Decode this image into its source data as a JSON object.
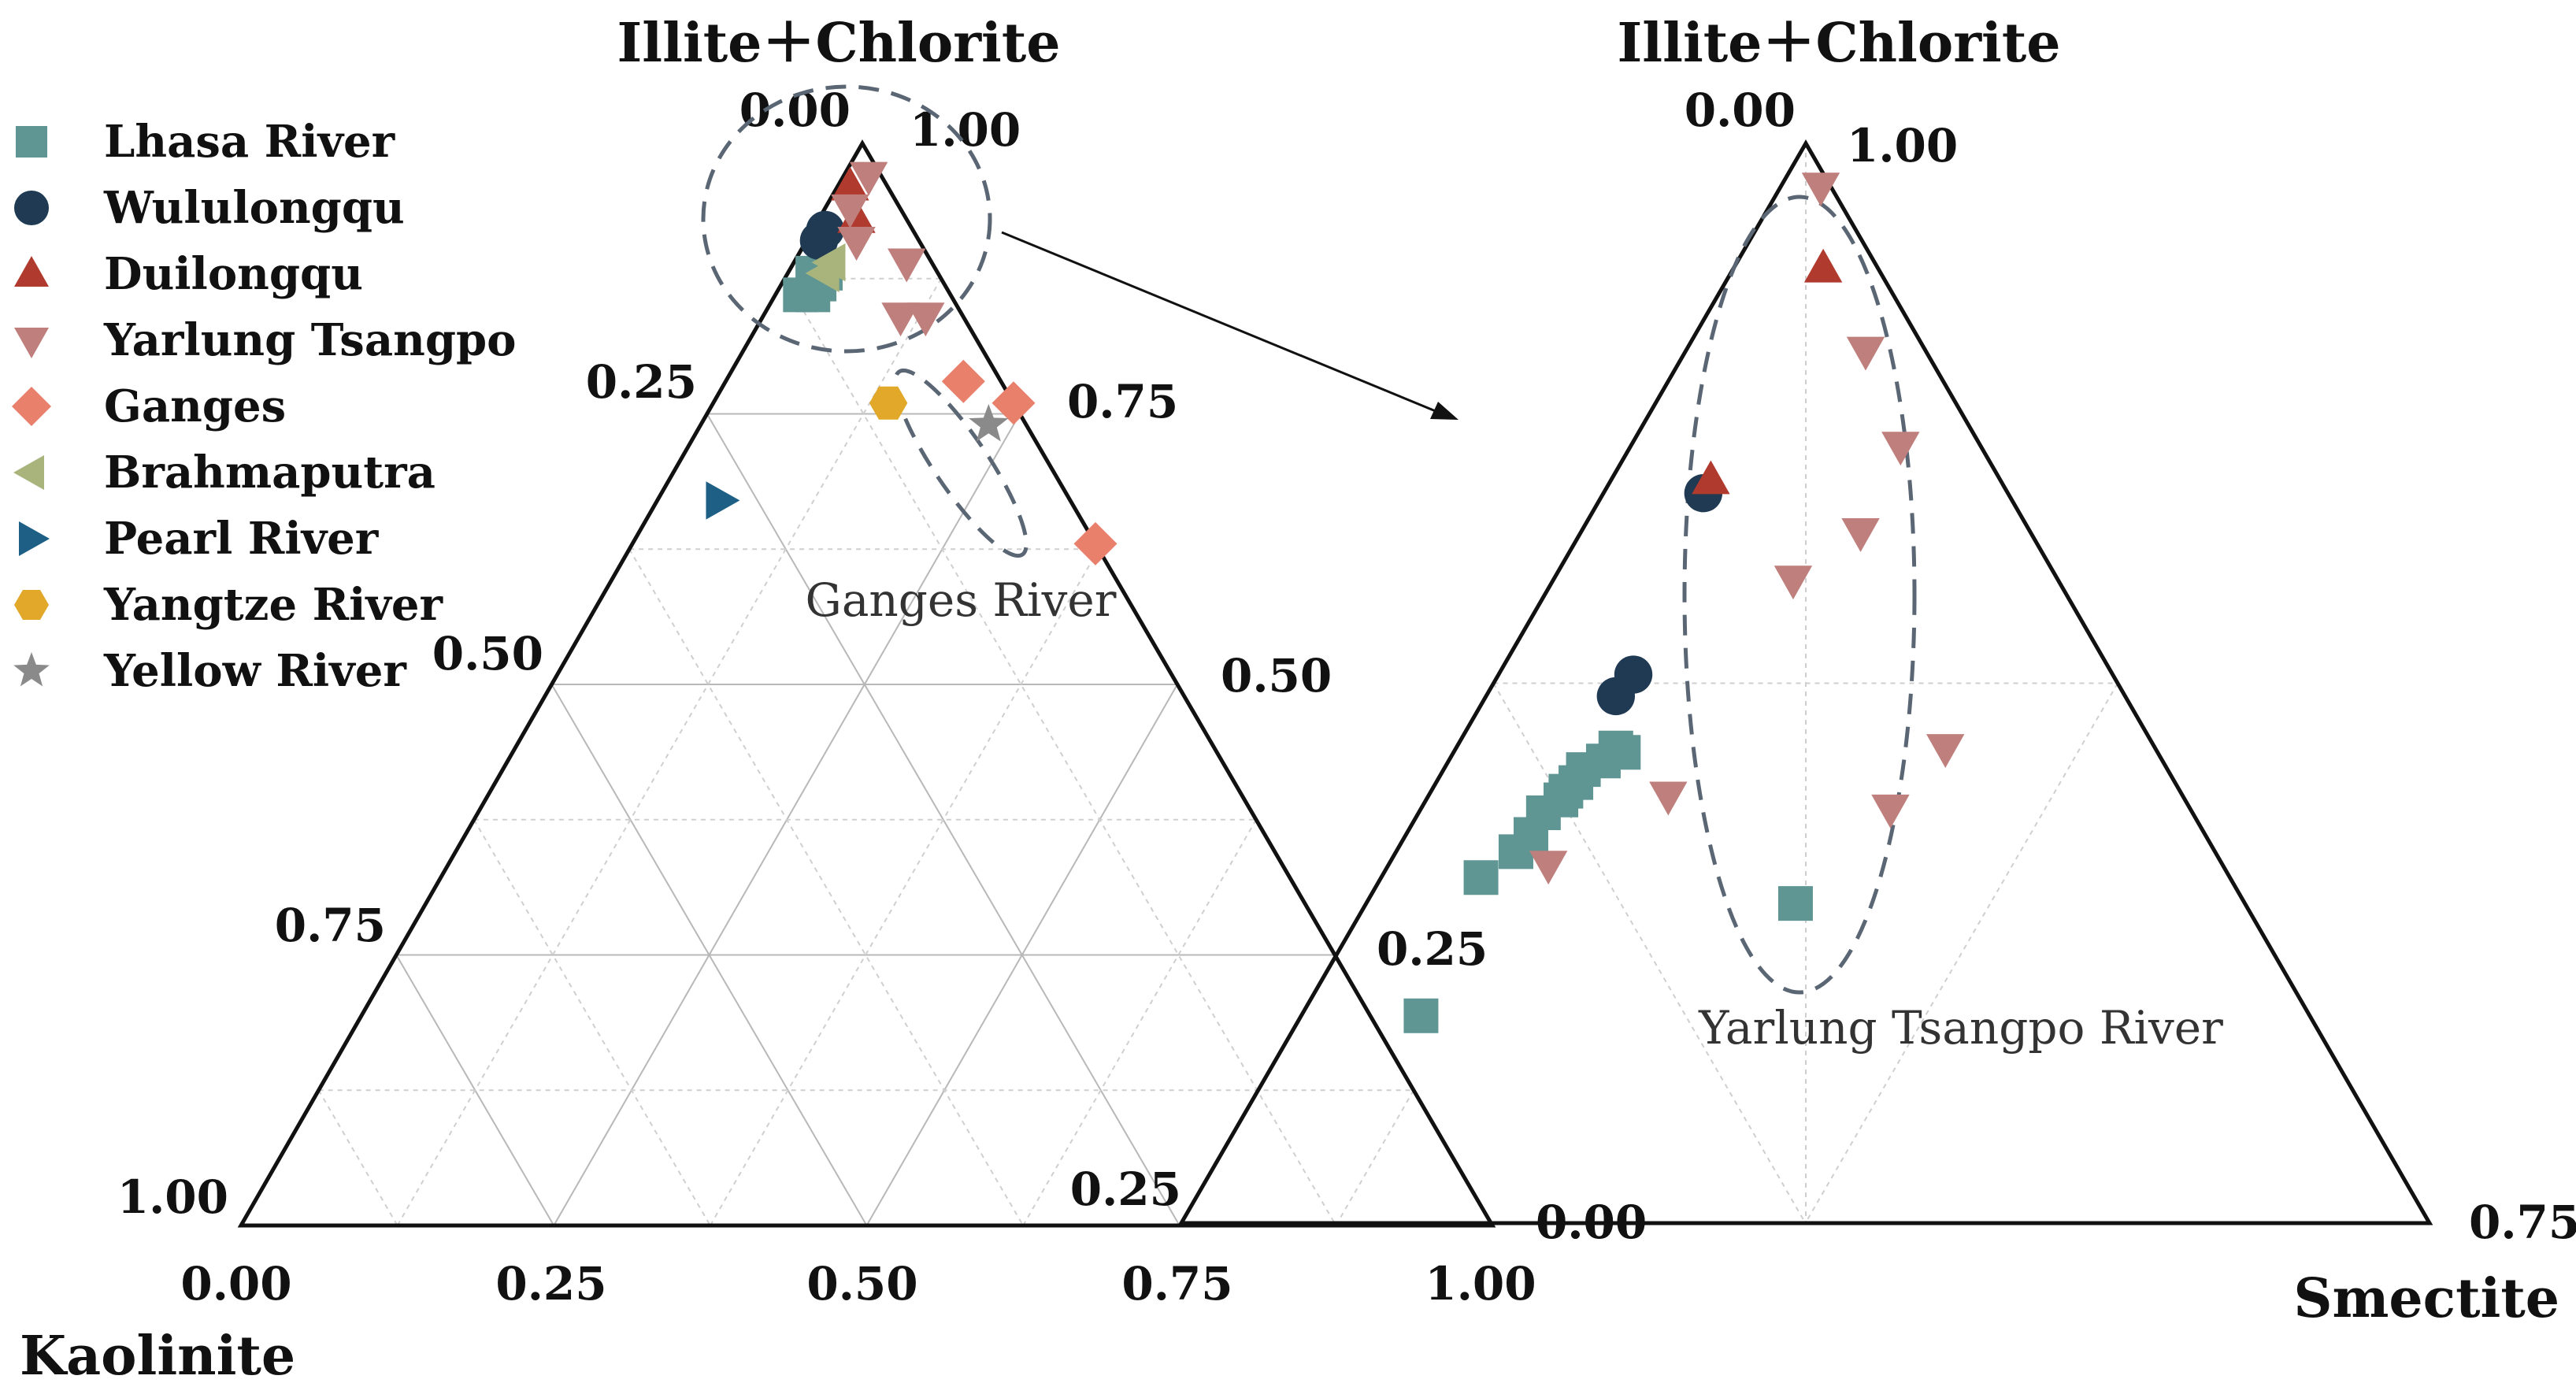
{
  "chart_data": [
    {
      "type": "scatter",
      "subtype": "ternary",
      "panel": "full",
      "apex_top_label": "Illite＋Chlorite",
      "bottom_axis_label": "Kaolinite",
      "axis_ticks": {
        "left": [
          "0.00",
          "0.25",
          "0.50",
          "0.75",
          "1.00"
        ],
        "bottom": [
          "0.00",
          "0.25",
          "0.50",
          "0.75",
          "1.00"
        ],
        "right": [
          "1.00",
          "0.75",
          "0.50",
          "0.25",
          "0.00"
        ]
      },
      "annotation": "Ganges River",
      "legend": [
        {
          "name": "Lhasa River",
          "marker": "square",
          "color": "#5f9694"
        },
        {
          "name": "Wululongqu",
          "marker": "circle",
          "color": "#1f3a52"
        },
        {
          "name": "Duilongqu",
          "marker": "triangle-up",
          "color": "#b03a2e"
        },
        {
          "name": "Yarlung Tsangpo",
          "marker": "triangle-down",
          "color": "#bf7f7c"
        },
        {
          "name": "Ganges",
          "marker": "diamond",
          "color": "#e8806c"
        },
        {
          "name": "Brahmaputra",
          "marker": "triangle-left",
          "color": "#a8b47c"
        },
        {
          "name": "Pearl River",
          "marker": "triangle-right",
          "color": "#1e5f86"
        },
        {
          "name": "Yangtze River",
          "marker": "hexagon",
          "color": "#e2a82a"
        },
        {
          "name": "Yellow River",
          "marker": "star",
          "color": "#8a8a8a"
        }
      ],
      "series": [
        {
          "name": "Lhasa River",
          "points": [
            [
              0.1,
              0.88
            ],
            [
              0.1,
              0.87
            ],
            [
              0.09,
              0.88
            ],
            [
              0.11,
              0.86
            ],
            [
              0.12,
              0.86
            ]
          ]
        },
        {
          "name": "Wululongqu",
          "points": [
            [
              0.07,
              0.92
            ],
            [
              0.08,
              0.91
            ]
          ]
        },
        {
          "name": "Duilongqu",
          "points": [
            [
              0.03,
              0.96
            ],
            [
              0.04,
              0.93
            ]
          ]
        },
        {
          "name": "Yarlung Tsangpo",
          "points": [
            [
              0.01,
              0.97
            ],
            [
              0.04,
              0.94
            ],
            [
              0.05,
              0.91
            ],
            [
              0.02,
              0.89
            ],
            [
              0.05,
              0.84
            ],
            [
              0.03,
              0.84
            ]
          ]
        },
        {
          "name": "Ganges",
          "points": [
            [
              0.03,
              0.78
            ],
            [
              0.0,
              0.76
            ],
            [
              0.0,
              0.63
            ]
          ]
        },
        {
          "name": "Brahmaputra",
          "points": [
            [
              0.08,
              0.89
            ],
            [
              0.09,
              0.88
            ]
          ]
        },
        {
          "name": "Pearl River",
          "points": [
            [
              0.28,
              0.67
            ]
          ]
        },
        {
          "name": "Yangtze River",
          "points": [
            [
              0.1,
              0.76
            ]
          ]
        },
        {
          "name": "Yellow River",
          "points": [
            [
              0.03,
              0.74
            ]
          ]
        }
      ]
    },
    {
      "type": "scatter",
      "subtype": "ternary-zoom",
      "panel": "zoom",
      "apex_top_label": "Illite＋Chlorite",
      "right_axis_label": "Smectite",
      "axis_ticks": {
        "left_top": "0.00",
        "left_bottom": "0.25",
        "right_top": "1.00",
        "right_bottom": "0.00",
        "bottom_right": "0.75"
      },
      "annotation": "Yarlung Tsangpo River",
      "series": [
        {
          "name": "Lhasa River",
          "points": [
            [
              0.107,
              0.859
            ],
            [
              0.112,
              0.857
            ],
            [
              0.117,
              0.855
            ],
            [
              0.108,
              0.86
            ],
            [
              0.12,
              0.852
            ],
            [
              0.13,
              0.845
            ],
            [
              0.125,
              0.848
            ],
            [
              0.135,
              0.84
            ],
            [
              0.14,
              0.836
            ],
            [
              0.15,
              0.83
            ],
            [
              0.125,
              0.848
            ],
            [
              0.123,
              0.85
            ],
            [
              0.09,
              0.824
            ],
            [
              0.178,
              0.798
            ]
          ]
        },
        {
          "name": "Wululongqu",
          "points": [
            [
              0.061,
              0.919
            ],
            [
              0.096,
              0.877
            ],
            [
              0.102,
              0.872
            ]
          ]
        },
        {
          "name": "Duilongqu",
          "points": [
            [
              0.011,
              0.971
            ],
            [
              0.058,
              0.922
            ]
          ]
        },
        {
          "name": "Yarlung Tsangpo",
          "points": [
            [
              0.002,
              0.99
            ],
            [
              0.012,
              0.952
            ],
            [
              0.016,
              0.93
            ],
            [
              0.053,
              0.899
            ],
            [
              0.034,
              0.91
            ],
            [
              0.06,
              0.846
            ],
            [
              0.042,
              0.86
            ]
          ]
        },
        {
          "name": "Yarlung Tsangpo",
          "points": [
            [
              0.103,
              0.849
            ],
            [
              0.135,
              0.833
            ]
          ]
        }
      ]
    }
  ]
}
